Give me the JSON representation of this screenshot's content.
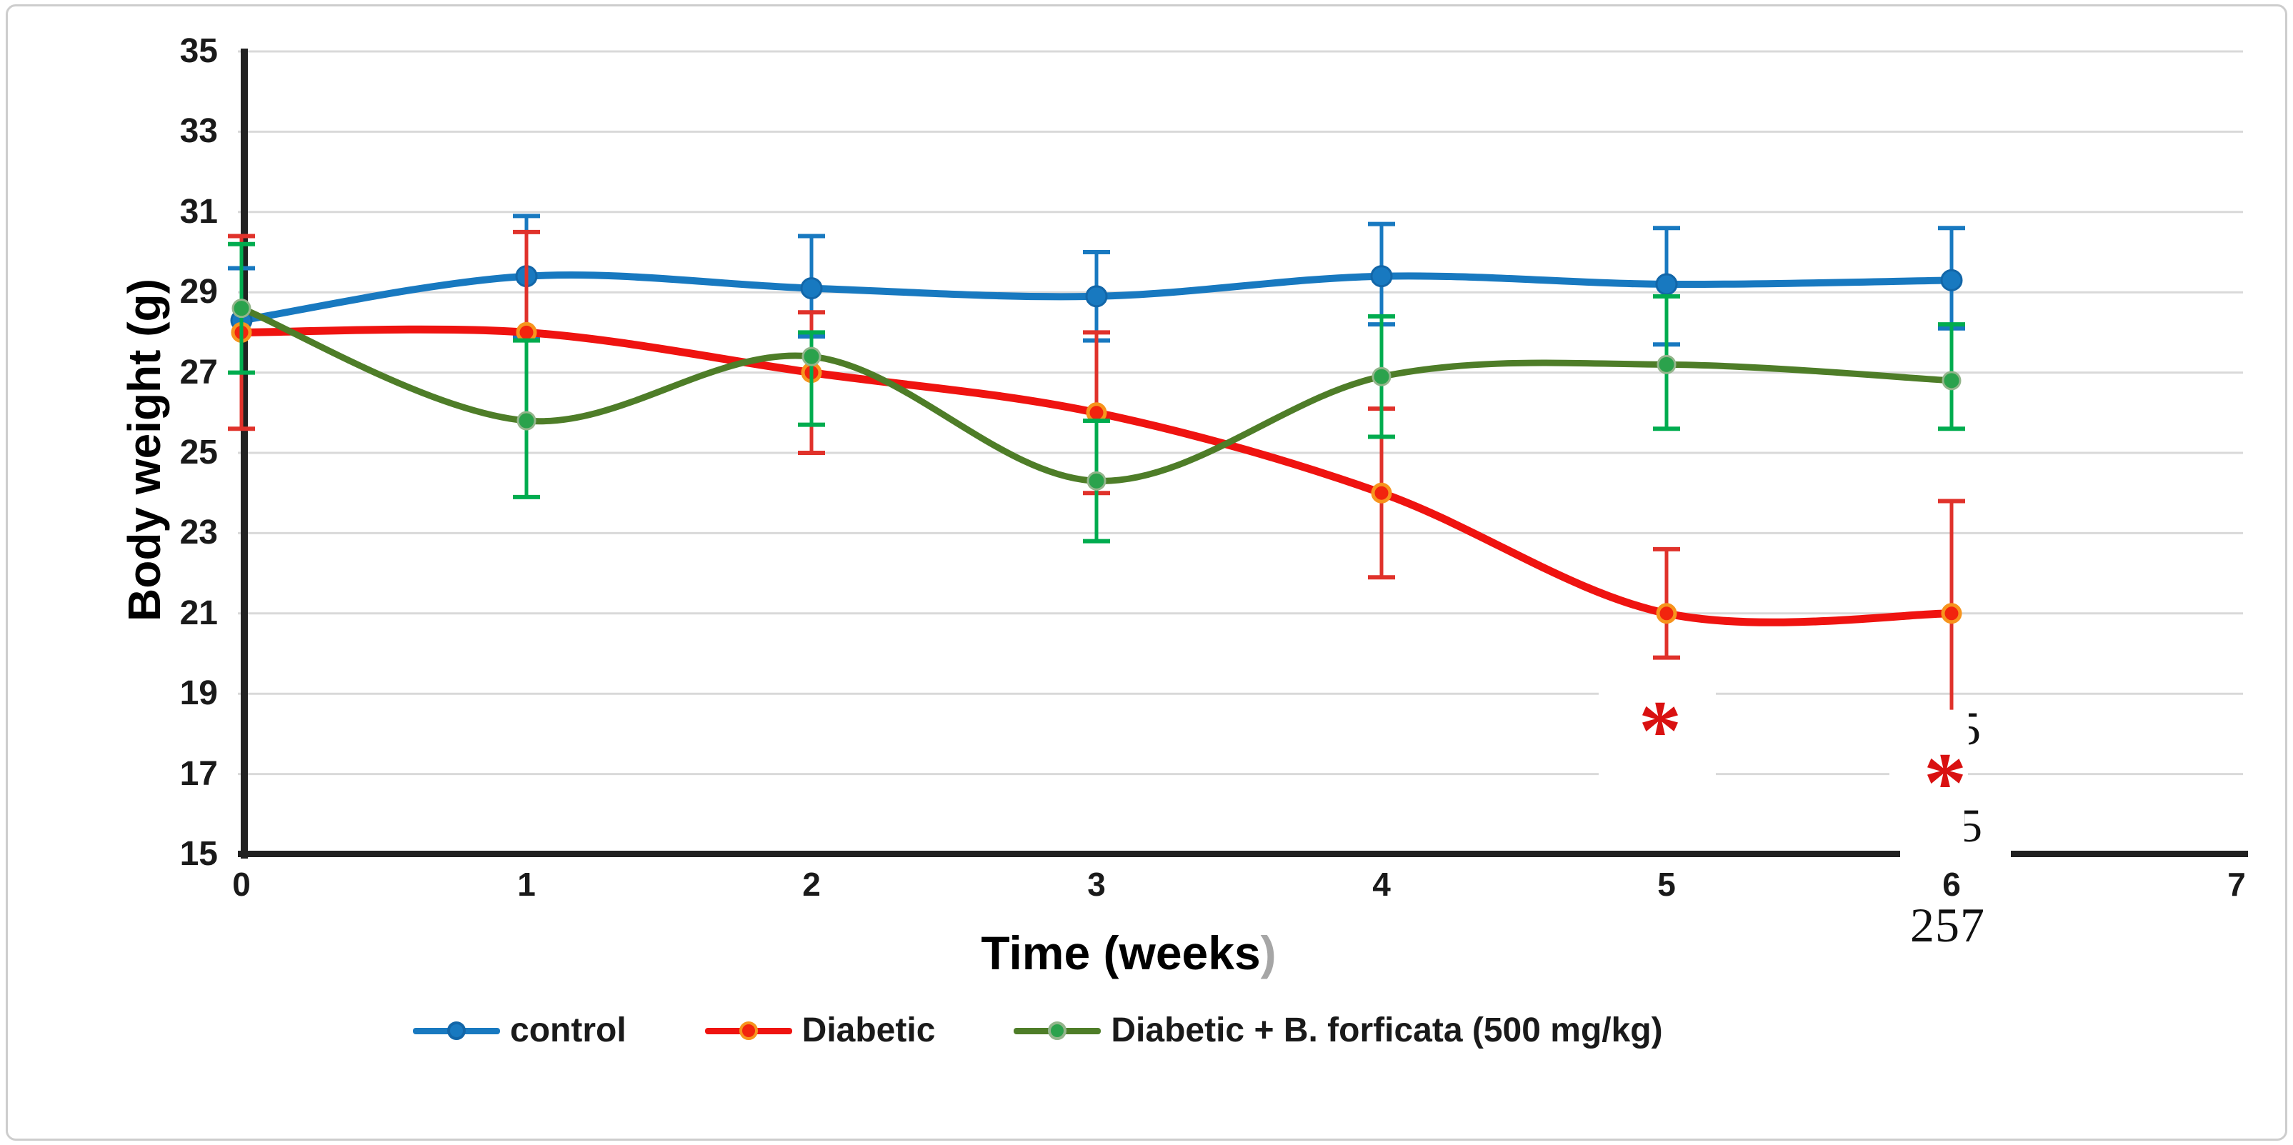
{
  "page_number": "257",
  "chart_data": {
    "type": "line",
    "title": "",
    "xlabel": "Time (weeks)",
    "xlabel_main": "Time (weeks",
    "xlabel_paren": ")",
    "ylabel": "Body weight (g)",
    "x": [
      0,
      1,
      2,
      3,
      4,
      5,
      6
    ],
    "x_ticks": [
      "0",
      "1",
      "2",
      "3",
      "4",
      "5",
      "6",
      "7"
    ],
    "y_ticks": [
      "35",
      "33",
      "31",
      "29",
      "27",
      "25",
      "23",
      "21",
      "19",
      "17",
      "15"
    ],
    "xlim": [
      0,
      7
    ],
    "ylim": [
      15,
      35
    ],
    "grid": true,
    "smooth_lines": true,
    "legend_position": "bottom",
    "series": [
      {
        "name": "control",
        "line_color": "#1879C0",
        "marker_color": "#1879C0",
        "marker_edge": "#1266A8",
        "error_color": "#1879C0",
        "values": [
          28.3,
          29.4,
          29.1,
          28.9,
          29.4,
          29.2,
          29.3
        ],
        "error_top": [
          29.6,
          30.9,
          30.4,
          30.0,
          30.7,
          30.6,
          30.6
        ],
        "error_bottom": [
          27.0,
          27.9,
          27.9,
          27.8,
          28.2,
          27.7,
          28.1
        ]
      },
      {
        "name": "Diabetic",
        "line_color": "#EF1310",
        "marker_color": "#F2240E",
        "marker_edge": "#F7941D",
        "error_color": "#E0322B",
        "values": [
          28.0,
          28.0,
          27.0,
          26.0,
          24.0,
          21.0,
          21.0
        ],
        "error_top": [
          30.4,
          30.5,
          28.5,
          28.0,
          26.1,
          22.6,
          23.8
        ],
        "error_bottom": [
          25.6,
          25.5,
          25.0,
          24.0,
          21.9,
          19.9,
          18.6
        ]
      },
      {
        "name": "Diabetic + B. forficata (500 mg/kg)",
        "line_color": "#4E7D28",
        "marker_color": "#2BA24C",
        "marker_edge": "#93B58B",
        "error_color": "#00AC4F",
        "values": [
          28.6,
          25.8,
          27.4,
          24.3,
          26.9,
          27.2,
          26.8
        ],
        "error_top": [
          30.2,
          27.8,
          28.0,
          25.8,
          28.4,
          28.9,
          28.2
        ],
        "error_bottom": [
          27.0,
          23.9,
          25.7,
          22.8,
          25.4,
          25.6,
          25.6
        ]
      }
    ],
    "annotations": {
      "asterisks": [
        {
          "x": 5,
          "y": 18.4,
          "text": "*"
        },
        {
          "x": 6,
          "y": 17.1,
          "text": "*"
        }
      ],
      "stray_glyphs": [
        {
          "text": "5"
        },
        {
          "text": "5"
        }
      ]
    }
  },
  "colors": {
    "gridline": "#D9D9D9",
    "axis": "#212121",
    "tick_text": "#1a1a1a",
    "page_number_text": "#111111",
    "asterisk": "#D91111",
    "xtitle_paren_gray": "#A6A6A6",
    "border": "#CDCDCD"
  }
}
